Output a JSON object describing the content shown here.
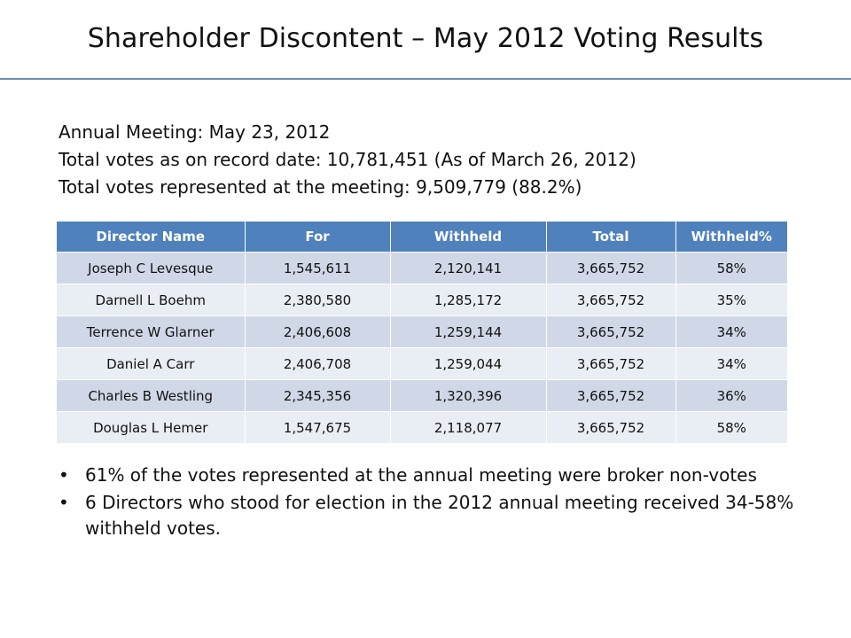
{
  "slide": {
    "title": "Shareholder Discontent – May 2012 Voting Results"
  },
  "info": {
    "line1": "Annual Meeting: May 23, 2012",
    "line2": "Total votes as on record date: 10,781,451 (As of March 26, 2012)",
    "line3": "Total votes represented at the meeting: 9,509,779 (88.2%)"
  },
  "table": {
    "headers": [
      "Director Name",
      "For",
      "Withheld",
      "Total",
      "Withheld%"
    ],
    "rows": [
      [
        "Joseph C Levesque",
        "1,545,611",
        "2,120,141",
        "3,665,752",
        "58%"
      ],
      [
        "Darnell L Boehm",
        "2,380,580",
        "1,285,172",
        "3,665,752",
        "35%"
      ],
      [
        "Terrence W Glarner",
        "2,406,608",
        "1,259,144",
        "3,665,752",
        "34%"
      ],
      [
        "Daniel A Carr",
        "2,406,708",
        "1,259,044",
        "3,665,752",
        "34%"
      ],
      [
        "Charles B Westling",
        "2,345,356",
        "1,320,396",
        "3,665,752",
        "36%"
      ],
      [
        "Douglas L Hemer",
        "1,547,675",
        "2,118,077",
        "3,665,752",
        "58%"
      ]
    ]
  },
  "bullets": [
    "61% of the votes represented at the annual meeting were broker non-votes",
    "6 Directors who stood for election in the 2012 annual meeting received 34-58% withheld votes."
  ],
  "bullet_symbol": "•",
  "colors": {
    "header_bg": "#4f81bd",
    "row_odd": "#d0d8e8",
    "row_even": "#e9edf4",
    "title_rule": "#6b8fb0"
  }
}
